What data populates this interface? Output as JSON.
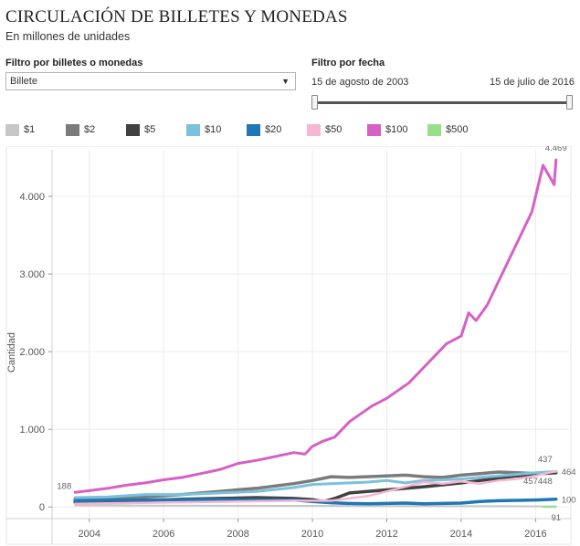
{
  "header": {
    "title": "CIRCULACIÓN DE BILLETES Y MONEDAS",
    "subtitle": "En millones de unidades"
  },
  "filters": {
    "type_label": "Filtro por billetes o monedas",
    "type_value": "Billete",
    "date_label": "Filtro por fecha",
    "date_start": "15 de agosto de 2003",
    "date_end": "15 de julio de 2016",
    "slider_start": 0,
    "slider_end": 1
  },
  "legend": {
    "items": [
      {
        "label": "$1",
        "color": "#c7c7c7"
      },
      {
        "label": "$2",
        "color": "#7b7b7b"
      },
      {
        "label": "$5",
        "color": "#414141"
      },
      {
        "label": "$10",
        "color": "#7cc1dc"
      },
      {
        "label": "$20",
        "color": "#1f77b4"
      },
      {
        "label": "$50",
        "color": "#f7b6d2"
      },
      {
        "label": "$100",
        "color": "#d660c4"
      },
      {
        "label": "$500",
        "color": "#98df8a"
      }
    ]
  },
  "chart_data": {
    "type": "line",
    "ylabel": "Cantidad",
    "xlabel": "",
    "xlim": [
      2003.0,
      2016.9
    ],
    "ylim": [
      -150,
      4600
    ],
    "y_ticks": [
      0,
      1000,
      2000,
      3000,
      4000
    ],
    "y_tick_labels": [
      "0",
      "1.000",
      "2.000",
      "3.000",
      "4.000"
    ],
    "x_ticks": [
      2004,
      2006,
      2008,
      2010,
      2012,
      2014,
      2016
    ],
    "x_tick_labels": [
      "2004",
      "2006",
      "2008",
      "2010",
      "2012",
      "2014",
      "2016"
    ],
    "grid": true,
    "series": [
      {
        "name": "$1",
        "color": "#c7c7c7",
        "width": 2,
        "x": [
          2003.62,
          2006,
          2009,
          2012,
          2015,
          2016.55
        ],
        "y": [
          20,
          18,
          15,
          12,
          10,
          8
        ]
      },
      {
        "name": "$2",
        "color": "#7b7b7b",
        "width": 3.5,
        "x": [
          2003.62,
          2004.5,
          2005.5,
          2006.5,
          2007.5,
          2008.5,
          2009.5,
          2010,
          2010.5,
          2011,
          2012,
          2012.5,
          2013,
          2013.5,
          2014,
          2014.5,
          2015,
          2015.5,
          2016,
          2016.55
        ],
        "y": [
          100,
          110,
          130,
          160,
          200,
          240,
          300,
          340,
          390,
          380,
          400,
          410,
          390,
          380,
          410,
          430,
          450,
          440,
          430,
          437
        ]
      },
      {
        "name": "$5",
        "color": "#414141",
        "width": 3.5,
        "x": [
          2003.62,
          2004.5,
          2005.5,
          2006.5,
          2007.5,
          2008.5,
          2009.5,
          2010,
          2010.3,
          2010.6,
          2011,
          2012,
          2013,
          2014,
          2014.5,
          2015,
          2015.5,
          2016,
          2016.55
        ],
        "y": [
          60,
          70,
          85,
          100,
          110,
          120,
          110,
          95,
          70,
          110,
          180,
          220,
          260,
          310,
          340,
          370,
          400,
          420,
          448
        ]
      },
      {
        "name": "$10",
        "color": "#7cc1dc",
        "width": 3,
        "x": [
          2003.62,
          2004.5,
          2005.5,
          2006.5,
          2007.5,
          2008.5,
          2009.5,
          2010,
          2010.5,
          2011,
          2011.5,
          2012,
          2012.5,
          2013,
          2013.5,
          2014,
          2014.5,
          2015,
          2015.5,
          2016,
          2016.55
        ],
        "y": [
          120,
          130,
          160,
          160,
          180,
          200,
          250,
          290,
          300,
          310,
          320,
          340,
          310,
          340,
          350,
          360,
          380,
          400,
          420,
          440,
          457
        ]
      },
      {
        "name": "$20",
        "color": "#1f77b4",
        "width": 3.5,
        "x": [
          2003.62,
          2004.5,
          2005.5,
          2006.5,
          2007.5,
          2008.5,
          2009.5,
          2010,
          2010.5,
          2011,
          2011.5,
          2012,
          2012.5,
          2013,
          2013.5,
          2014,
          2014.5,
          2015,
          2015.5,
          2016,
          2016.55
        ],
        "y": [
          80,
          85,
          90,
          95,
          95,
          90,
          90,
          70,
          55,
          45,
          40,
          45,
          50,
          40,
          45,
          50,
          70,
          80,
          85,
          90,
          100
        ]
      },
      {
        "name": "$50",
        "color": "#f7b6d2",
        "width": 2.5,
        "x": [
          2003.62,
          2005,
          2006.5,
          2008,
          2009.5,
          2010.5,
          2011,
          2011.5,
          2012,
          2012.5,
          2013,
          2013.5,
          2014,
          2014.5,
          2015,
          2015.5,
          2016,
          2016.55
        ],
        "y": [
          40,
          50,
          60,
          70,
          80,
          80,
          110,
          140,
          200,
          260,
          320,
          300,
          330,
          300,
          340,
          360,
          400,
          464
        ]
      },
      {
        "name": "$100",
        "color": "#d660c4",
        "width": 3,
        "x": [
          2003.62,
          2004,
          2004.5,
          2005,
          2005.5,
          2006,
          2006.5,
          2007,
          2007.5,
          2008,
          2008.5,
          2009,
          2009.5,
          2009.8,
          2010,
          2010.3,
          2010.6,
          2011,
          2011.3,
          2011.6,
          2012,
          2012.3,
          2012.6,
          2013,
          2013.3,
          2013.6,
          2014,
          2014.2,
          2014.4,
          2014.7,
          2015,
          2015.3,
          2015.6,
          2015.9,
          2016,
          2016.2,
          2016.5,
          2016.55
        ],
        "y": [
          188,
          210,
          240,
          280,
          310,
          350,
          380,
          430,
          480,
          560,
          600,
          650,
          700,
          680,
          780,
          850,
          900,
          1100,
          1200,
          1300,
          1400,
          1500,
          1600,
          1800,
          1950,
          2100,
          2200,
          2500,
          2400,
          2600,
          2900,
          3200,
          3500,
          3800,
          4000,
          4400,
          4150,
          4469
        ]
      },
      {
        "name": "$500",
        "color": "#98df8a",
        "width": 2,
        "x": [
          2016.2,
          2016.55
        ],
        "y": [
          0,
          0
        ]
      }
    ],
    "end_labels": [
      {
        "text": "4.469",
        "x": 2016.55,
        "y": 4469,
        "align": "middle",
        "dy": -10
      },
      {
        "text": "188",
        "x": 2003.62,
        "y": 188,
        "align": "end",
        "dy": -4
      },
      {
        "text": "437",
        "x": 2016.55,
        "y": 437,
        "align": "end",
        "dy": -12
      },
      {
        "text": "464",
        "x": 2016.55,
        "y": 464,
        "align": "start",
        "dy": 4
      },
      {
        "text": "457448",
        "x": 2016.55,
        "y": 440,
        "align": "end",
        "dy": 12
      },
      {
        "text": "100",
        "x": 2016.55,
        "y": 100,
        "align": "start",
        "dy": 4
      },
      {
        "text": "91",
        "x": 2016.55,
        "y": -80,
        "align": "middle",
        "dy": 8
      }
    ]
  }
}
